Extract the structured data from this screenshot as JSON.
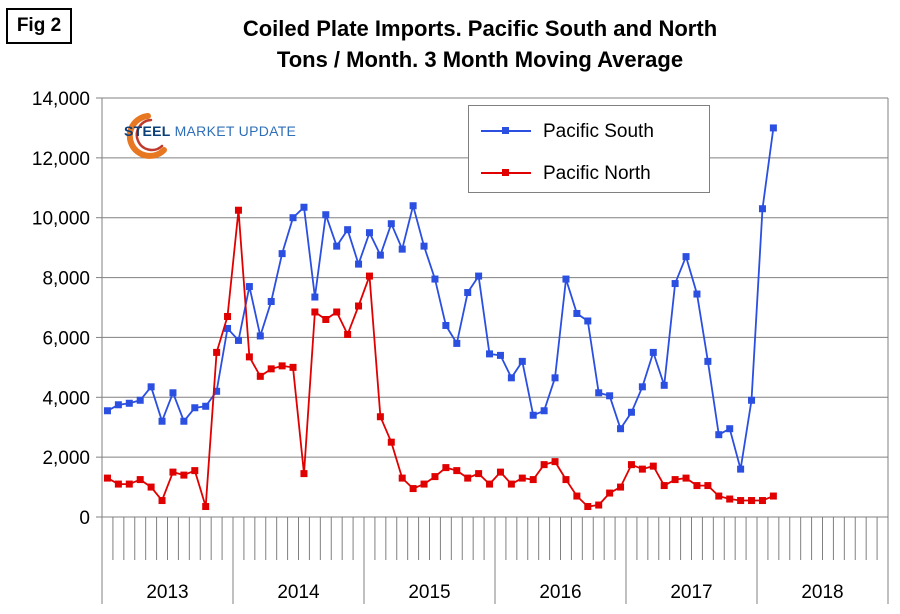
{
  "figure_label": "Fig 2",
  "title_line1": "Coiled Plate Imports. Pacific South and North",
  "title_line2": "Tons / Month. 3 Month Moving Average",
  "logo": {
    "word1": "STEEL",
    "word2": "MARKET UPDATE"
  },
  "colors": {
    "pacific_south": "#2b4fe0",
    "pacific_north": "#e00000",
    "grid": "#808080",
    "axis": "#808080"
  },
  "chart_data": {
    "type": "line",
    "title": "Coiled Plate Imports. Pacific South and North Tons / Month. 3 Month Moving Average",
    "xlabel": "",
    "ylabel": "",
    "ylim": [
      0,
      14000
    ],
    "y_ticks": [
      0,
      2000,
      4000,
      6000,
      8000,
      10000,
      12000,
      14000
    ],
    "y_tick_labels": [
      "0",
      "2,000",
      "4,000",
      "6,000",
      "8,000",
      "10,000",
      "12,000",
      "14,000"
    ],
    "x_unit": "month",
    "x_start": "2013-01",
    "year_labels": [
      "2013",
      "2014",
      "2015",
      "2016",
      "2017",
      "2018"
    ],
    "months_per_year_shown": [
      12,
      12,
      12,
      12,
      12,
      12
    ],
    "grid": true,
    "legend_position": "top-right",
    "series": [
      {
        "name": "Pacific South",
        "values": [
          3550,
          3750,
          3800,
          3900,
          4350,
          3200,
          4150,
          3200,
          3650,
          3700,
          4200,
          6300,
          5900,
          7700,
          6050,
          7200,
          8800,
          10000,
          10350,
          7350,
          10100,
          9050,
          9600,
          8450,
          9500,
          8750,
          9800,
          8950,
          10400,
          9050,
          7950,
          6400,
          5800,
          7500,
          8050,
          5450,
          5400,
          4650,
          5200,
          3400,
          3550,
          4650,
          7950,
          6800,
          6550,
          4150,
          4050,
          2950,
          3500,
          4350,
          5500,
          4400,
          7800,
          8700,
          7450,
          5200,
          2750,
          2950,
          1600,
          3900,
          10300,
          13000
        ]
      },
      {
        "name": "Pacific North",
        "values": [
          1300,
          1100,
          1100,
          1250,
          1000,
          550,
          1500,
          1400,
          1550,
          350,
          5500,
          6700,
          10250,
          5350,
          4700,
          4950,
          5050,
          5000,
          1450,
          6850,
          6600,
          6850,
          6100,
          7050,
          8050,
          3350,
          2500,
          1300,
          950,
          1100,
          1350,
          1650,
          1550,
          1300,
          1450,
          1100,
          1500,
          1100,
          1300,
          1250,
          1750,
          1850,
          1250,
          700,
          350,
          400,
          800,
          1000,
          1750,
          1600,
          1700,
          1050,
          1250,
          1300,
          1050,
          1050,
          700,
          600,
          550,
          550,
          550,
          700
        ]
      }
    ]
  }
}
